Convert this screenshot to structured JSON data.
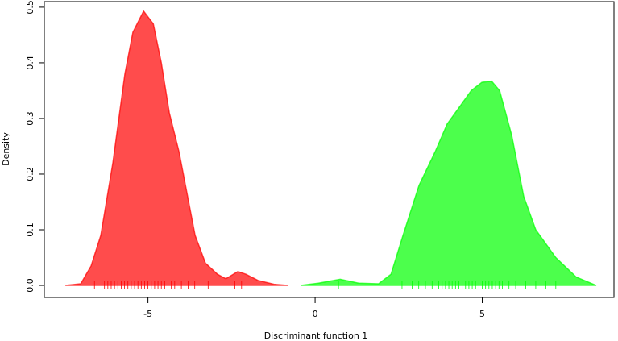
{
  "chart_data": {
    "type": "density",
    "x_label": "Discriminant function 1",
    "y_label": "Density",
    "xlim": [
      -8.1,
      8.94
    ],
    "ylim": [
      -0.0217,
      0.51
    ],
    "xticks": [
      -5,
      0,
      5
    ],
    "yticks": [
      {
        "value": 0,
        "label": "0.0"
      },
      {
        "value": 0.1,
        "label": "0.1"
      },
      {
        "value": 0.2,
        "label": "0.2"
      },
      {
        "value": 0.3,
        "label": "0.3"
      },
      {
        "value": 0.4,
        "label": "0.4"
      },
      {
        "value": 0.5,
        "label": "0.5"
      }
    ],
    "series": [
      {
        "color": "#ff0000",
        "x": [
          -7.47,
          -7.01,
          -6.7,
          -6.41,
          -6.05,
          -5.69,
          -5.45,
          -5.13,
          -4.84,
          -4.6,
          -4.36,
          -4.07,
          -3.83,
          -3.59,
          -3.28,
          -2.92,
          -2.67,
          -2.31,
          -2.07,
          -1.71,
          -1.23,
          -0.82
        ],
        "values": [
          0,
          0.003,
          0.035,
          0.09,
          0.22,
          0.38,
          0.455,
          0.493,
          0.47,
          0.4,
          0.31,
          0.24,
          0.165,
          0.09,
          0.04,
          0.02,
          0.012,
          0.025,
          0.02,
          0.009,
          0.002,
          0
        ],
        "rug": [
          -6.6,
          -6.3,
          -6.2,
          -6.1,
          -6.0,
          -5.9,
          -5.8,
          -5.7,
          -5.6,
          -5.5,
          -5.4,
          -5.3,
          -5.2,
          -5.1,
          -5.0,
          -4.9,
          -4.8,
          -4.7,
          -4.6,
          -4.5,
          -4.4,
          -4.3,
          -4.2,
          -4.0,
          -3.8,
          -3.6,
          -3.2,
          -2.4,
          -2.2,
          -1.8
        ]
      },
      {
        "color": "#00ff00",
        "x": [
          -0.43,
          0.1,
          0.75,
          1.3,
          1.9,
          2.27,
          2.63,
          3.11,
          3.59,
          3.95,
          4.31,
          4.67,
          4.99,
          5.28,
          5.52,
          5.88,
          6.24,
          6.6,
          7.2,
          7.81,
          8.41
        ],
        "values": [
          0,
          0.004,
          0.011,
          0.004,
          0.003,
          0.02,
          0.09,
          0.18,
          0.24,
          0.29,
          0.32,
          0.35,
          0.365,
          0.367,
          0.35,
          0.27,
          0.16,
          0.1,
          0.05,
          0.015,
          0
        ],
        "rug": [
          0.7,
          2.6,
          2.9,
          3.1,
          3.3,
          3.5,
          3.7,
          3.8,
          3.9,
          4.0,
          4.1,
          4.2,
          4.3,
          4.4,
          4.5,
          4.6,
          4.7,
          4.8,
          4.9,
          5.0,
          5.1,
          5.2,
          5.3,
          5.4,
          5.5,
          5.6,
          5.8,
          6.0,
          6.3,
          6.6,
          6.9,
          7.2
        ]
      }
    ]
  }
}
